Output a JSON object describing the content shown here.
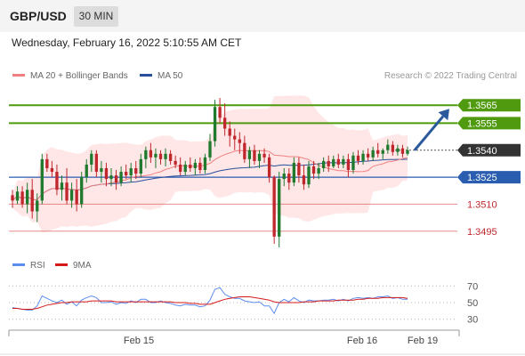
{
  "header": {
    "symbol": "GBP/USD",
    "timeframe": "30 MIN"
  },
  "timestamp": "Wednesday, February 16, 2022 5:10:55 AM CET",
  "legend": {
    "bollinger": "MA 20 + Bollinger Bands",
    "ma50": "MA 50",
    "rsi": "RSI",
    "rsi_ma": "9MA"
  },
  "copyright": "Research © 2022 Trading Central",
  "colors": {
    "resistance": "#4f9a0e",
    "support": "#2a5db0",
    "target": "#e06666",
    "current": "#333333",
    "bull": "#1f7a2e",
    "bear": "#c0272d",
    "band": "#ffe3e3",
    "ma20": "#f08080",
    "ma50": "#2a4f9a",
    "rsi": "#5b8def",
    "rsi_ma": "#d61a1a"
  },
  "chart_data": {
    "type": "candlestick",
    "x_ticks": [
      "Feb 15",
      "Feb 16",
      "Feb 19"
    ],
    "y_range": [
      1.3484,
      1.3574
    ],
    "levels": [
      {
        "label": "1.3565",
        "value": 1.3565,
        "kind": "resistance"
      },
      {
        "label": "1.3555",
        "value": 1.3555,
        "kind": "resistance"
      },
      {
        "label": "1.3540",
        "value": 1.354,
        "kind": "current"
      },
      {
        "label": "1.3525",
        "value": 1.3525,
        "kind": "support"
      },
      {
        "label": "1.3510",
        "value": 1.351,
        "kind": "target"
      },
      {
        "label": "1.3495",
        "value": 1.3495,
        "kind": "target"
      }
    ],
    "candles": [
      [
        1.3515,
        1.3518,
        1.3508,
        1.3512
      ],
      [
        1.3512,
        1.352,
        1.351,
        1.3517
      ],
      [
        1.3517,
        1.352,
        1.3508,
        1.351
      ],
      [
        1.351,
        1.3522,
        1.3505,
        1.3518
      ],
      [
        1.3518,
        1.3524,
        1.3502,
        1.3506
      ],
      [
        1.3506,
        1.3516,
        1.35,
        1.3512
      ],
      [
        1.3512,
        1.3538,
        1.351,
        1.3535
      ],
      [
        1.3535,
        1.3538,
        1.3528,
        1.353
      ],
      [
        1.353,
        1.3534,
        1.3525,
        1.3528
      ],
      [
        1.3528,
        1.3532,
        1.3515,
        1.3518
      ],
      [
        1.3518,
        1.3526,
        1.3512,
        1.3522
      ],
      [
        1.3522,
        1.353,
        1.351,
        1.3512
      ],
      [
        1.3512,
        1.3522,
        1.3508,
        1.3518
      ],
      [
        1.3518,
        1.3524,
        1.3506,
        1.351
      ],
      [
        1.351,
        1.3528,
        1.3508,
        1.3525
      ],
      [
        1.3525,
        1.3535,
        1.3522,
        1.3532
      ],
      [
        1.3532,
        1.354,
        1.3528,
        1.3538
      ],
      [
        1.3538,
        1.354,
        1.3525,
        1.3528
      ],
      [
        1.3528,
        1.3534,
        1.3522,
        1.353
      ],
      [
        1.353,
        1.3533,
        1.352,
        1.3524
      ],
      [
        1.3524,
        1.353,
        1.352,
        1.3526
      ],
      [
        1.3526,
        1.3529,
        1.3518,
        1.3522
      ],
      [
        1.3522,
        1.3531,
        1.352,
        1.3528
      ],
      [
        1.3528,
        1.3532,
        1.3524,
        1.3526
      ],
      [
        1.3526,
        1.3533,
        1.3522,
        1.353
      ],
      [
        1.353,
        1.3534,
        1.3524,
        1.3527
      ],
      [
        1.3527,
        1.3538,
        1.3525,
        1.3535
      ],
      [
        1.3535,
        1.3542,
        1.353,
        1.354
      ],
      [
        1.354,
        1.3544,
        1.3533,
        1.3536
      ],
      [
        1.3536,
        1.3541,
        1.353,
        1.3538
      ],
      [
        1.3538,
        1.354,
        1.3532,
        1.3535
      ],
      [
        1.3535,
        1.3541,
        1.3531,
        1.3538
      ],
      [
        1.3538,
        1.354,
        1.3532,
        1.3534
      ],
      [
        1.3534,
        1.3537,
        1.353,
        1.3532
      ],
      [
        1.3532,
        1.3536,
        1.3526,
        1.3528
      ],
      [
        1.3528,
        1.3534,
        1.3526,
        1.3532
      ],
      [
        1.3532,
        1.3536,
        1.3528,
        1.353
      ],
      [
        1.353,
        1.3535,
        1.3526,
        1.3533
      ],
      [
        1.3533,
        1.3536,
        1.3527,
        1.3529
      ],
      [
        1.3529,
        1.3538,
        1.3527,
        1.3536
      ],
      [
        1.3536,
        1.3549,
        1.3534,
        1.3545
      ],
      [
        1.3545,
        1.3568,
        1.3542,
        1.3564
      ],
      [
        1.3564,
        1.3569,
        1.3555,
        1.3558
      ],
      [
        1.3558,
        1.3566,
        1.3548,
        1.3552
      ],
      [
        1.3552,
        1.3556,
        1.3542,
        1.3548
      ],
      [
        1.3548,
        1.3552,
        1.354,
        1.3546
      ],
      [
        1.3546,
        1.355,
        1.3538,
        1.3544
      ],
      [
        1.3544,
        1.3548,
        1.3533,
        1.3535
      ],
      [
        1.3535,
        1.3542,
        1.353,
        1.354
      ],
      [
        1.354,
        1.3543,
        1.3532,
        1.3534
      ],
      [
        1.3534,
        1.354,
        1.353,
        1.3538
      ],
      [
        1.3538,
        1.3541,
        1.3533,
        1.3536
      ],
      [
        1.3536,
        1.3538,
        1.3522,
        1.3525
      ],
      [
        1.3525,
        1.3526,
        1.3488,
        1.3492
      ],
      [
        1.3492,
        1.3528,
        1.3486,
        1.3524
      ],
      [
        1.3524,
        1.353,
        1.352,
        1.3527
      ],
      [
        1.3527,
        1.353,
        1.3518,
        1.3522
      ],
      [
        1.3522,
        1.3536,
        1.352,
        1.3533
      ],
      [
        1.3533,
        1.3536,
        1.3522,
        1.3526
      ],
      [
        1.3526,
        1.3532,
        1.3518,
        1.3521
      ],
      [
        1.3521,
        1.3534,
        1.3519,
        1.3531
      ],
      [
        1.3531,
        1.3534,
        1.3524,
        1.3527
      ],
      [
        1.3527,
        1.3533,
        1.3524,
        1.353
      ],
      [
        1.353,
        1.3536,
        1.3528,
        1.3534
      ],
      [
        1.3534,
        1.3537,
        1.3528,
        1.3531
      ],
      [
        1.3531,
        1.3537,
        1.353,
        1.3535
      ],
      [
        1.3535,
        1.3538,
        1.353,
        1.3532
      ],
      [
        1.3532,
        1.3537,
        1.353,
        1.3535
      ],
      [
        1.3535,
        1.3538,
        1.3525,
        1.3529
      ],
      [
        1.3529,
        1.3539,
        1.3527,
        1.3537
      ],
      [
        1.3537,
        1.354,
        1.3532,
        1.3534
      ],
      [
        1.3534,
        1.354,
        1.3532,
        1.3538
      ],
      [
        1.3538,
        1.3541,
        1.3534,
        1.3536
      ],
      [
        1.3536,
        1.3542,
        1.3534,
        1.354
      ],
      [
        1.354,
        1.3544,
        1.3536,
        1.3538
      ],
      [
        1.3538,
        1.3541,
        1.3535,
        1.354
      ],
      [
        1.354,
        1.3546,
        1.3538,
        1.3543
      ],
      [
        1.3543,
        1.3545,
        1.3537,
        1.3539
      ],
      [
        1.3539,
        1.3543,
        1.3537,
        1.3541
      ],
      [
        1.3541,
        1.3543,
        1.3536,
        1.3538
      ],
      [
        1.3538,
        1.3542,
        1.3537,
        1.354
      ]
    ],
    "rsi": {
      "range": [
        20,
        80
      ],
      "ticks": [
        70,
        50,
        30
      ],
      "rsi_values": [
        44,
        43,
        42,
        41,
        41,
        46,
        58,
        55,
        52,
        50,
        53,
        48,
        51,
        46,
        53,
        56,
        58,
        56,
        50,
        50,
        51,
        48,
        50,
        49,
        52,
        50,
        54,
        54,
        50,
        50,
        52,
        50,
        49,
        47,
        46,
        48,
        47,
        47,
        45,
        46,
        53,
        66,
        68,
        60,
        57,
        55,
        55,
        52,
        51,
        50,
        51,
        46,
        46,
        37,
        50,
        54,
        51,
        56,
        52,
        50,
        53,
        52,
        52,
        53,
        53,
        54,
        52,
        54,
        52,
        55,
        56,
        55,
        56,
        55,
        57,
        57,
        58,
        55,
        56,
        54,
        54
      ],
      "ma_values": [
        43,
        43,
        42,
        42,
        42,
        43,
        45,
        47,
        48,
        49,
        50,
        50,
        51,
        51,
        51,
        51,
        52,
        52,
        52,
        52,
        52,
        51,
        51,
        51,
        51,
        51,
        51,
        51,
        51,
        51,
        51,
        51,
        51,
        50,
        50,
        50,
        49,
        49,
        48,
        48,
        48,
        50,
        52,
        54,
        55,
        56,
        57,
        57,
        57,
        56,
        55,
        54,
        53,
        51,
        50,
        50,
        50,
        50,
        50,
        51,
        51,
        51,
        52,
        52,
        52,
        52,
        53,
        53,
        53,
        53,
        54,
        54,
        55,
        55,
        55,
        56,
        56,
        56,
        56,
        56,
        55
      ]
    }
  }
}
